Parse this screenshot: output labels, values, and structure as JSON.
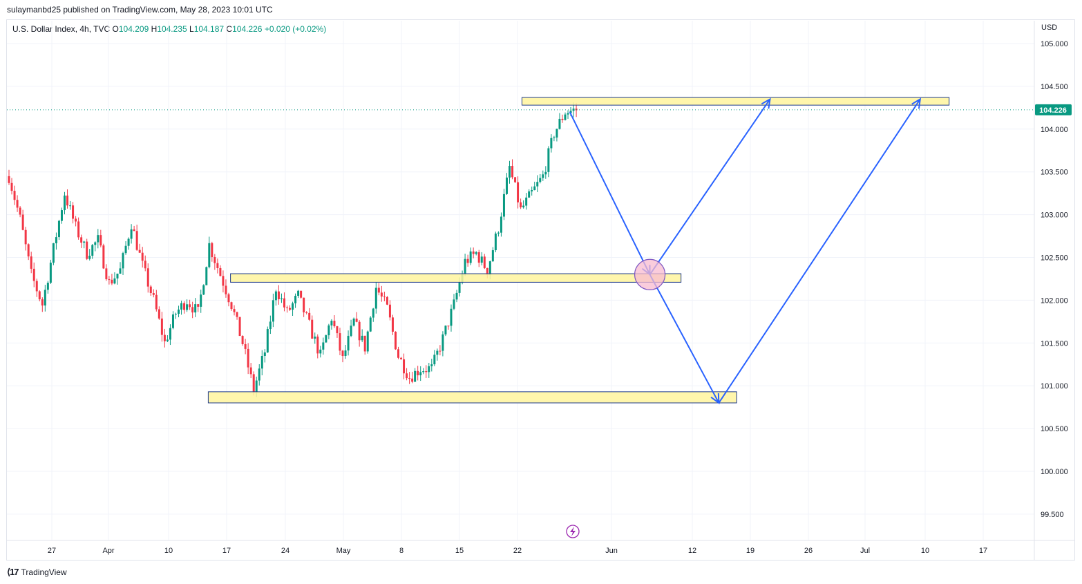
{
  "header": {
    "published_line": "sulaymanbd25 published on TradingView.com, May 28, 2023 10:01 UTC"
  },
  "legend": {
    "symbol": "U.S. Dollar Index, 4h, TVC",
    "o_label": "O",
    "o_value": "104.209",
    "h_label": "H",
    "h_value": "104.235",
    "l_label": "L",
    "l_value": "104.187",
    "c_label": "C",
    "c_value": "104.226",
    "change": "+0.020 (+0.02%)"
  },
  "footer": {
    "brand": "TradingView"
  },
  "colors": {
    "up": "#089981",
    "down": "#f23645",
    "zone_fill": "#fff59d",
    "zone_stroke": "#1e3a8a",
    "arrow": "#2962ff",
    "price_tag": "#089981"
  },
  "chart_data": {
    "type": "candlestick",
    "currency_label": "USD",
    "ylim": [
      99.2,
      105.35
    ],
    "y_ticks": [
      "105.000",
      "104.500",
      "104.000",
      "103.500",
      "103.000",
      "102.500",
      "102.000",
      "101.500",
      "101.000",
      "100.500",
      "100.000",
      "99.500"
    ],
    "x_ticks": [
      "27",
      "Apr",
      "10",
      "17",
      "24",
      "May",
      "8",
      "15",
      "22",
      "Jun",
      "12",
      "19",
      "26",
      "Jul",
      "10",
      "17"
    ],
    "last_price": "104.226",
    "candle_path": [
      [
        0,
        103.45
      ],
      [
        1,
        102.95
      ],
      [
        2,
        102.3
      ],
      [
        3,
        101.95
      ],
      [
        4,
        102.6
      ],
      [
        5,
        103.25
      ],
      [
        6,
        102.85
      ],
      [
        7,
        102.55
      ],
      [
        8,
        102.7
      ],
      [
        9,
        102.2
      ],
      [
        10,
        102.35
      ],
      [
        11,
        102.9
      ],
      [
        12,
        102.4
      ],
      [
        13,
        102.0
      ],
      [
        14,
        101.5
      ],
      [
        15,
        101.85
      ],
      [
        16,
        102.0
      ],
      [
        17,
        101.85
      ],
      [
        18,
        102.65
      ],
      [
        19,
        102.3
      ],
      [
        20,
        101.95
      ],
      [
        21,
        101.5
      ],
      [
        22,
        100.95
      ],
      [
        23,
        101.4
      ],
      [
        24,
        102.15
      ],
      [
        25,
        101.85
      ],
      [
        26,
        102.05
      ],
      [
        27,
        101.7
      ],
      [
        28,
        101.35
      ],
      [
        29,
        101.8
      ],
      [
        30,
        101.3
      ],
      [
        31,
        101.75
      ],
      [
        32,
        101.45
      ],
      [
        33,
        102.15
      ],
      [
        34,
        101.9
      ],
      [
        35,
        101.35
      ],
      [
        36,
        101.1
      ],
      [
        37,
        101.2
      ],
      [
        38,
        101.2
      ],
      [
        39,
        101.55
      ],
      [
        40,
        101.95
      ],
      [
        41,
        102.45
      ],
      [
        42,
        102.55
      ],
      [
        43,
        102.35
      ],
      [
        44,
        102.85
      ],
      [
        45,
        103.55
      ],
      [
        46,
        103.05
      ],
      [
        47,
        103.25
      ],
      [
        48,
        103.45
      ],
      [
        49,
        103.95
      ],
      [
        50,
        104.2
      ],
      [
        51,
        104.226
      ]
    ],
    "zones": [
      {
        "name": "Resistance zone",
        "top": 104.37,
        "bottom": 104.28,
        "x_start": 46.3,
        "x_end": 84.7
      },
      {
        "name": "Middle zone",
        "top": 102.31,
        "bottom": 102.21,
        "x_start": 20.1,
        "x_end": 60.6
      },
      {
        "name": "Support zone",
        "top": 100.93,
        "bottom": 100.8,
        "x_start": 18.1,
        "x_end": 65.6
      }
    ],
    "projection": {
      "points": [
        [
          50.6,
          104.2
        ],
        [
          57.8,
          102.3
        ],
        [
          68.6,
          104.35
        ]
      ],
      "points2": [
        [
          57.8,
          102.3
        ],
        [
          64.0,
          100.8
        ],
        [
          82.1,
          104.35
        ]
      ],
      "circle_center": [
        57.8,
        102.3
      ]
    }
  }
}
